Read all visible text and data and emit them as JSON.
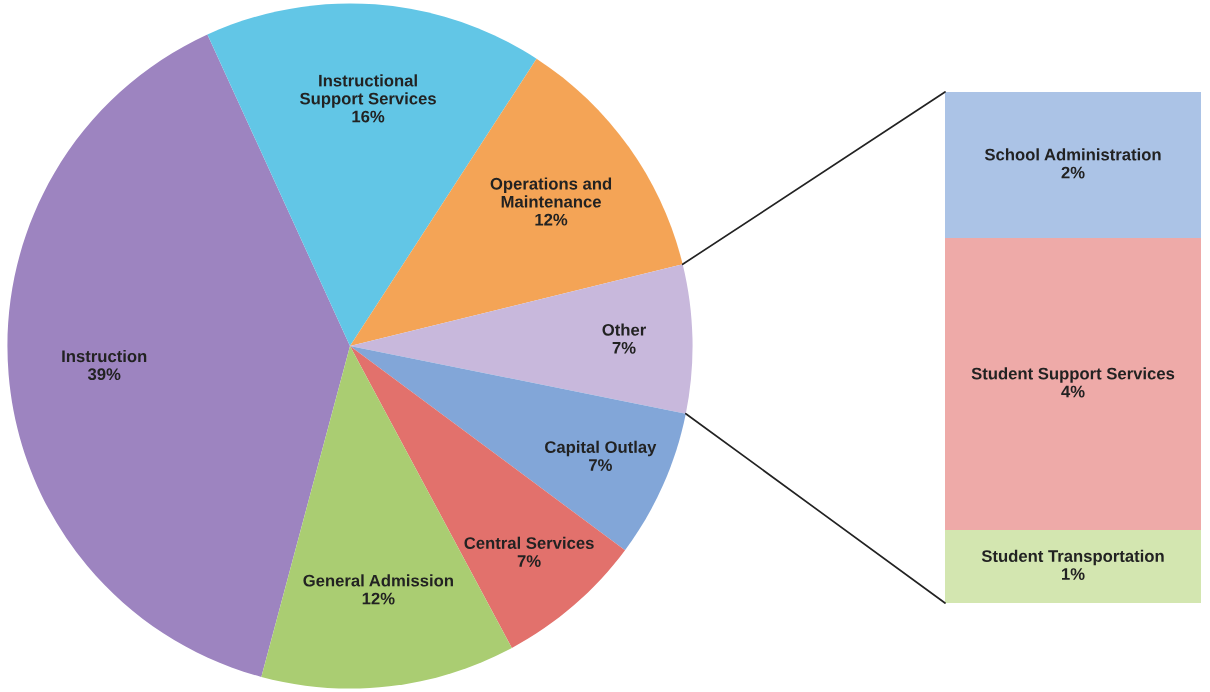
{
  "chart_data": [
    {
      "type": "pie",
      "categories": [
        "Instruction",
        "Instructional Support Services",
        "Operations and Maintenance",
        "Other",
        "Capital Outlay",
        "Central Services",
        "General Admission"
      ],
      "values": [
        39,
        16,
        12,
        7,
        7,
        7,
        12
      ],
      "value_labels": [
        "39%",
        "16%",
        "12%",
        "7%",
        "7%",
        "7%",
        "12%"
      ],
      "colors": [
        "#9d84c0",
        "#62c6e6",
        "#f4a456",
        "#c8b8dc",
        "#82a6d8",
        "#e2716c",
        "#aacd72"
      ]
    },
    {
      "type": "bar",
      "stacked": true,
      "categories": [
        null
      ],
      "ylim": [
        0,
        7
      ],
      "tick_labels": false,
      "series": [
        {
          "name": "Student Transportation",
          "color": "#d3e6b0",
          "values": [
            1
          ],
          "value_labels": [
            "1%"
          ]
        },
        {
          "name": "Student Support Services",
          "color": "#eeaaa8",
          "values": [
            4
          ],
          "value_labels": [
            "4%"
          ]
        },
        {
          "name": "School Administration",
          "color": "#abc3e6",
          "values": [
            2
          ],
          "value_labels": [
            "2%"
          ]
        }
      ]
    }
  ]
}
